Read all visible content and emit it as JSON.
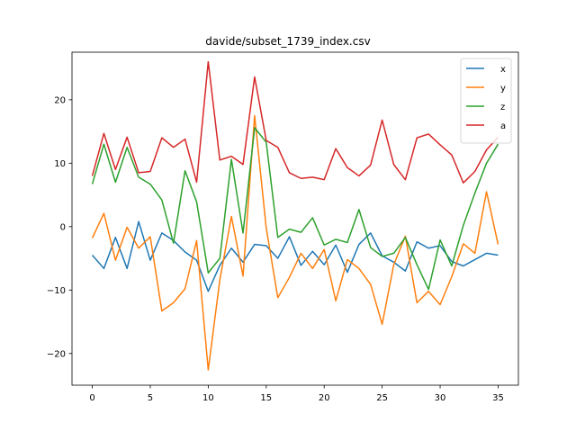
{
  "chart_data": {
    "type": "line",
    "title": "davide/subset_1739_index.csv",
    "xlabel": "",
    "ylabel": "",
    "xlim": [
      -1.75,
      36.75
    ],
    "ylim": [
      -25,
      27.5
    ],
    "xticks": [
      0,
      5,
      10,
      15,
      20,
      25,
      30,
      35
    ],
    "yticks": [
      -20,
      -10,
      0,
      10,
      20
    ],
    "grid": false,
    "legend_position": "top-right",
    "x": [
      0,
      1,
      2,
      3,
      4,
      5,
      6,
      7,
      8,
      9,
      10,
      11,
      12,
      13,
      14,
      15,
      16,
      17,
      18,
      19,
      20,
      21,
      22,
      23,
      24,
      25,
      26,
      27,
      28,
      29,
      30,
      31,
      32,
      33,
      34,
      35
    ],
    "series": [
      {
        "name": "x",
        "color": "#1f77b4",
        "values": [
          -4.5,
          -6.6,
          -1.7,
          -6.6,
          0.8,
          -5.3,
          -1.0,
          -2.2,
          -4.0,
          -5.3,
          -10.2,
          -6.1,
          -3.4,
          -5.6,
          -2.8,
          -3.0,
          -5.0,
          -1.6,
          -6.1,
          -3.9,
          -6.0,
          -2.9,
          -7.2,
          -2.8,
          -1.0,
          -4.6,
          -5.6,
          -7.0,
          -2.4,
          -3.4,
          -3.0,
          -5.5,
          -6.2,
          -5.2,
          -4.2,
          -4.5
        ]
      },
      {
        "name": "y",
        "color": "#ff7f0e",
        "values": [
          -1.8,
          2.1,
          -5.3,
          -0.1,
          -3.4,
          -1.6,
          -13.3,
          -12.0,
          -9.8,
          -2.2,
          -22.6,
          -8.4,
          1.6,
          -7.8,
          17.5,
          -0.2,
          -11.2,
          -8.0,
          -4.2,
          -6.6,
          -3.6,
          -11.7,
          -5.2,
          -6.6,
          -9.1,
          -15.4,
          -6.0,
          -1.5,
          -12.0,
          -10.2,
          -12.3,
          -7.9,
          -2.7,
          -4.2,
          5.5,
          -2.8
        ]
      },
      {
        "name": "z",
        "color": "#2ca02c",
        "values": [
          6.7,
          13.0,
          7.0,
          12.5,
          7.8,
          6.7,
          4.2,
          -2.6,
          8.8,
          3.9,
          -7.3,
          -5.0,
          10.6,
          -1.0,
          15.6,
          13.3,
          -1.7,
          -0.4,
          -0.9,
          1.4,
          -2.9,
          -2.0,
          -2.5,
          2.7,
          -3.3,
          -4.7,
          -4.2,
          -1.7,
          -6.0,
          -9.9,
          -2.1,
          -6.2,
          0.2,
          5.3,
          10.0,
          13.0
        ]
      },
      {
        "name": "a",
        "color": "#d62728",
        "values": [
          8.0,
          14.7,
          9.0,
          14.1,
          8.5,
          8.7,
          14.0,
          12.5,
          13.8,
          7.0,
          26.0,
          10.5,
          11.1,
          9.8,
          23.6,
          13.6,
          12.5,
          8.5,
          7.6,
          7.8,
          7.4,
          12.3,
          9.3,
          8.0,
          9.7,
          16.8,
          9.8,
          7.4,
          14.0,
          14.6,
          12.9,
          11.3,
          6.9,
          8.7,
          12.1,
          14.1
        ]
      }
    ]
  }
}
